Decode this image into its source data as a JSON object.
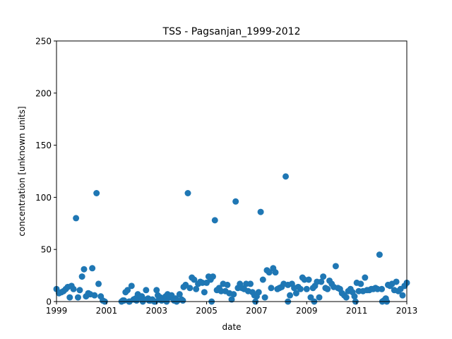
{
  "chart_data": {
    "type": "scatter",
    "title": "TSS - Pagsanjan_1999-2012",
    "xlabel": "date",
    "ylabel": "concentration [unknown units]",
    "xlim": [
      1999,
      2013
    ],
    "ylim": [
      0,
      250
    ],
    "xticks": [
      "1999",
      "2001",
      "2003",
      "2005",
      "2007",
      "2009",
      "2011",
      "2013"
    ],
    "yticks": [
      "0",
      "50",
      "100",
      "150",
      "200",
      "250"
    ],
    "grid": false,
    "marker_color": "#1f77b4",
    "x": [
      1999.0,
      1999.1,
      1999.2,
      1999.28,
      1999.37,
      1999.45,
      1999.53,
      1999.6,
      1999.68,
      1999.78,
      1999.86,
      1999.93,
      2000.02,
      2000.1,
      2000.18,
      2000.27,
      2000.35,
      2000.43,
      2000.52,
      2000.6,
      2000.68,
      2000.77,
      2000.85,
      2000.93,
      2001.7,
      2001.76,
      2001.84,
      2001.92,
      2002.0,
      2002.08,
      2002.16,
      2002.25,
      2002.33,
      2002.41,
      2002.5,
      2002.58,
      2002.66,
      2002.75,
      2002.83,
      2002.91,
      2003.0,
      2003.05,
      2003.1,
      2003.15,
      2003.2,
      2003.28,
      2003.36,
      2003.44,
      2003.52,
      2003.6,
      2003.68,
      2003.76,
      2003.84,
      2003.92,
      2004.0,
      2004.08,
      2004.16,
      2004.25,
      2004.33,
      2004.41,
      2004.5,
      2004.58,
      2004.66,
      2004.75,
      2004.83,
      2004.91,
      2005.0,
      2005.08,
      2005.16,
      2005.25,
      2005.33,
      2005.41,
      2005.5,
      2005.58,
      2005.66,
      2005.75,
      2005.83,
      2005.91,
      2006.0,
      2006.08,
      2006.16,
      2006.25,
      2006.33,
      2006.41,
      2006.5,
      2006.58,
      2006.66,
      2006.75,
      2006.83,
      2006.91,
      2007.0,
      2007.08,
      2007.16,
      2007.25,
      2007.33,
      2007.41,
      2007.5,
      2007.58,
      2007.66,
      2007.75,
      2007.83,
      2007.91,
      2008.0,
      2008.08,
      2008.16,
      2008.25,
      2008.33,
      2008.41,
      2008.5,
      2008.58,
      2008.66,
      2008.75,
      2008.83,
      2008.91,
      2009.0,
      2009.08,
      2009.16,
      2009.25,
      2009.33,
      2009.41,
      2009.5,
      2009.58,
      2009.66,
      2009.75,
      2009.83,
      2009.91,
      2010.0,
      2010.08,
      2010.16,
      2010.25,
      2010.33,
      2010.41,
      2010.5,
      2010.58,
      2010.66,
      2010.75,
      2010.83,
      2010.91,
      2011.0,
      2011.08,
      2011.16,
      2011.25,
      2011.33,
      2011.41,
      2011.5,
      2011.58,
      2011.66,
      2011.75,
      2011.83,
      2011.91,
      2012.0,
      2012.08,
      2012.16,
      2012.25,
      2012.33,
      2012.41,
      2012.5,
      2012.58,
      2012.66,
      2012.75,
      2012.83,
      2012.91,
      2013.0,
      2001.6,
      2001.65,
      2001.9,
      2002.2,
      2002.45,
      2002.7,
      2002.95,
      2003.4,
      2003.7,
      2003.8,
      2004.05,
      2005.2,
      2006.95,
      2008.25,
      2009.3,
      2010.95,
      2012.02,
      2012.2
    ],
    "y": [
      12,
      8,
      9,
      10,
      12,
      14,
      4,
      15,
      12,
      80,
      4,
      11,
      24,
      31,
      5,
      8,
      7,
      32,
      6,
      104,
      17,
      5,
      1,
      0,
      1,
      9,
      11,
      0,
      15,
      2,
      3,
      7,
      4,
      5,
      2,
      11,
      3,
      1,
      2,
      0,
      11,
      6,
      2,
      4,
      1,
      3,
      5,
      7,
      4,
      6,
      2,
      3,
      1,
      7,
      2,
      14,
      16,
      104,
      13,
      23,
      21,
      12,
      17,
      19,
      18,
      9,
      18,
      24,
      21,
      24,
      78,
      11,
      13,
      10,
      17,
      10,
      16,
      8,
      2,
      7,
      96,
      13,
      17,
      13,
      12,
      17,
      10,
      17,
      9,
      6,
      5,
      9,
      86,
      21,
      4,
      30,
      28,
      13,
      32,
      28,
      12,
      13,
      14,
      17,
      120,
      16,
      6,
      17,
      13,
      8,
      14,
      12,
      23,
      21,
      12,
      21,
      4,
      13,
      15,
      19,
      4,
      19,
      24,
      13,
      12,
      20,
      17,
      14,
      34,
      13,
      12,
      8,
      6,
      4,
      10,
      12,
      9,
      5,
      18,
      10,
      17,
      10,
      23,
      11,
      11,
      12,
      12,
      13,
      12,
      45,
      12,
      1,
      3,
      16,
      15,
      17,
      11,
      19,
      10,
      12,
      6,
      15,
      18,
      0,
      1,
      0,
      1,
      0,
      1,
      0,
      0,
      1,
      0,
      1,
      0,
      0,
      0,
      0,
      0,
      0,
      0
    ]
  }
}
